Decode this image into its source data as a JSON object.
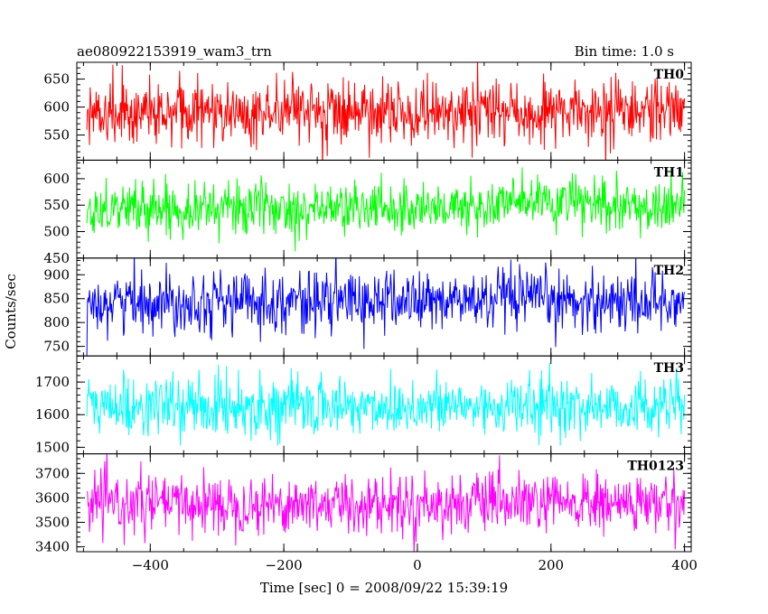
{
  "header": {
    "title": "ae080922153919_wam3_trn",
    "bin_time": "Bin time: 1.0 s"
  },
  "chart_data": {
    "type": "line",
    "title": "ae080922153919_wam3_trn",
    "xlabel": "Time [sec] 0 = 2008/09/22 15:39:19",
    "ylabel": "Counts/sec",
    "xlim": [
      -510,
      410
    ],
    "x_ticks": [
      -400,
      -200,
      0,
      200,
      400
    ],
    "x_tick_labels": [
      "−400",
      "−200",
      "0",
      "200",
      "400"
    ],
    "x_range": [
      -495,
      400
    ],
    "x_step": 1,
    "grid": false,
    "series": [
      {
        "name": "TH0",
        "color": "#ff0000",
        "ylim": [
          505,
          680
        ],
        "yticks": [
          550,
          600,
          650
        ],
        "ytick_labels": [
          "550",
          "600",
          "650"
        ],
        "mean": 590,
        "sd": 28,
        "step_up": 0
      },
      {
        "name": "TH1",
        "color": "#00ff00",
        "ylim": [
          450,
          635
        ],
        "yticks": [
          450,
          500,
          550,
          600
        ],
        "ytick_labels": [
          "450",
          "500",
          "550",
          "600"
        ],
        "mean": 545,
        "sd": 25,
        "step_up": 10
      },
      {
        "name": "TH2",
        "color": "#0000ff",
        "ylim": [
          730,
          935
        ],
        "yticks": [
          750,
          800,
          850,
          900
        ],
        "ytick_labels": [
          "750",
          "800",
          "850",
          "900"
        ],
        "mean": 845,
        "sd": 32,
        "step_up": 0
      },
      {
        "name": "TH3",
        "color": "#00ffff",
        "ylim": [
          1480,
          1780
        ],
        "yticks": [
          1500,
          1600,
          1700
        ],
        "ytick_labels": [
          "1500",
          "1600",
          "1700"
        ],
        "mean": 1625,
        "sd": 45,
        "step_up": 0
      },
      {
        "name": "TH0123",
        "color": "#ff00ff",
        "ylim": [
          3380,
          3780
        ],
        "yticks": [
          3400,
          3500,
          3600,
          3700
        ],
        "ytick_labels": [
          "3400",
          "3500",
          "3600",
          "3700"
        ],
        "mean": 3575,
        "sd": 60,
        "step_up": 0
      }
    ]
  }
}
